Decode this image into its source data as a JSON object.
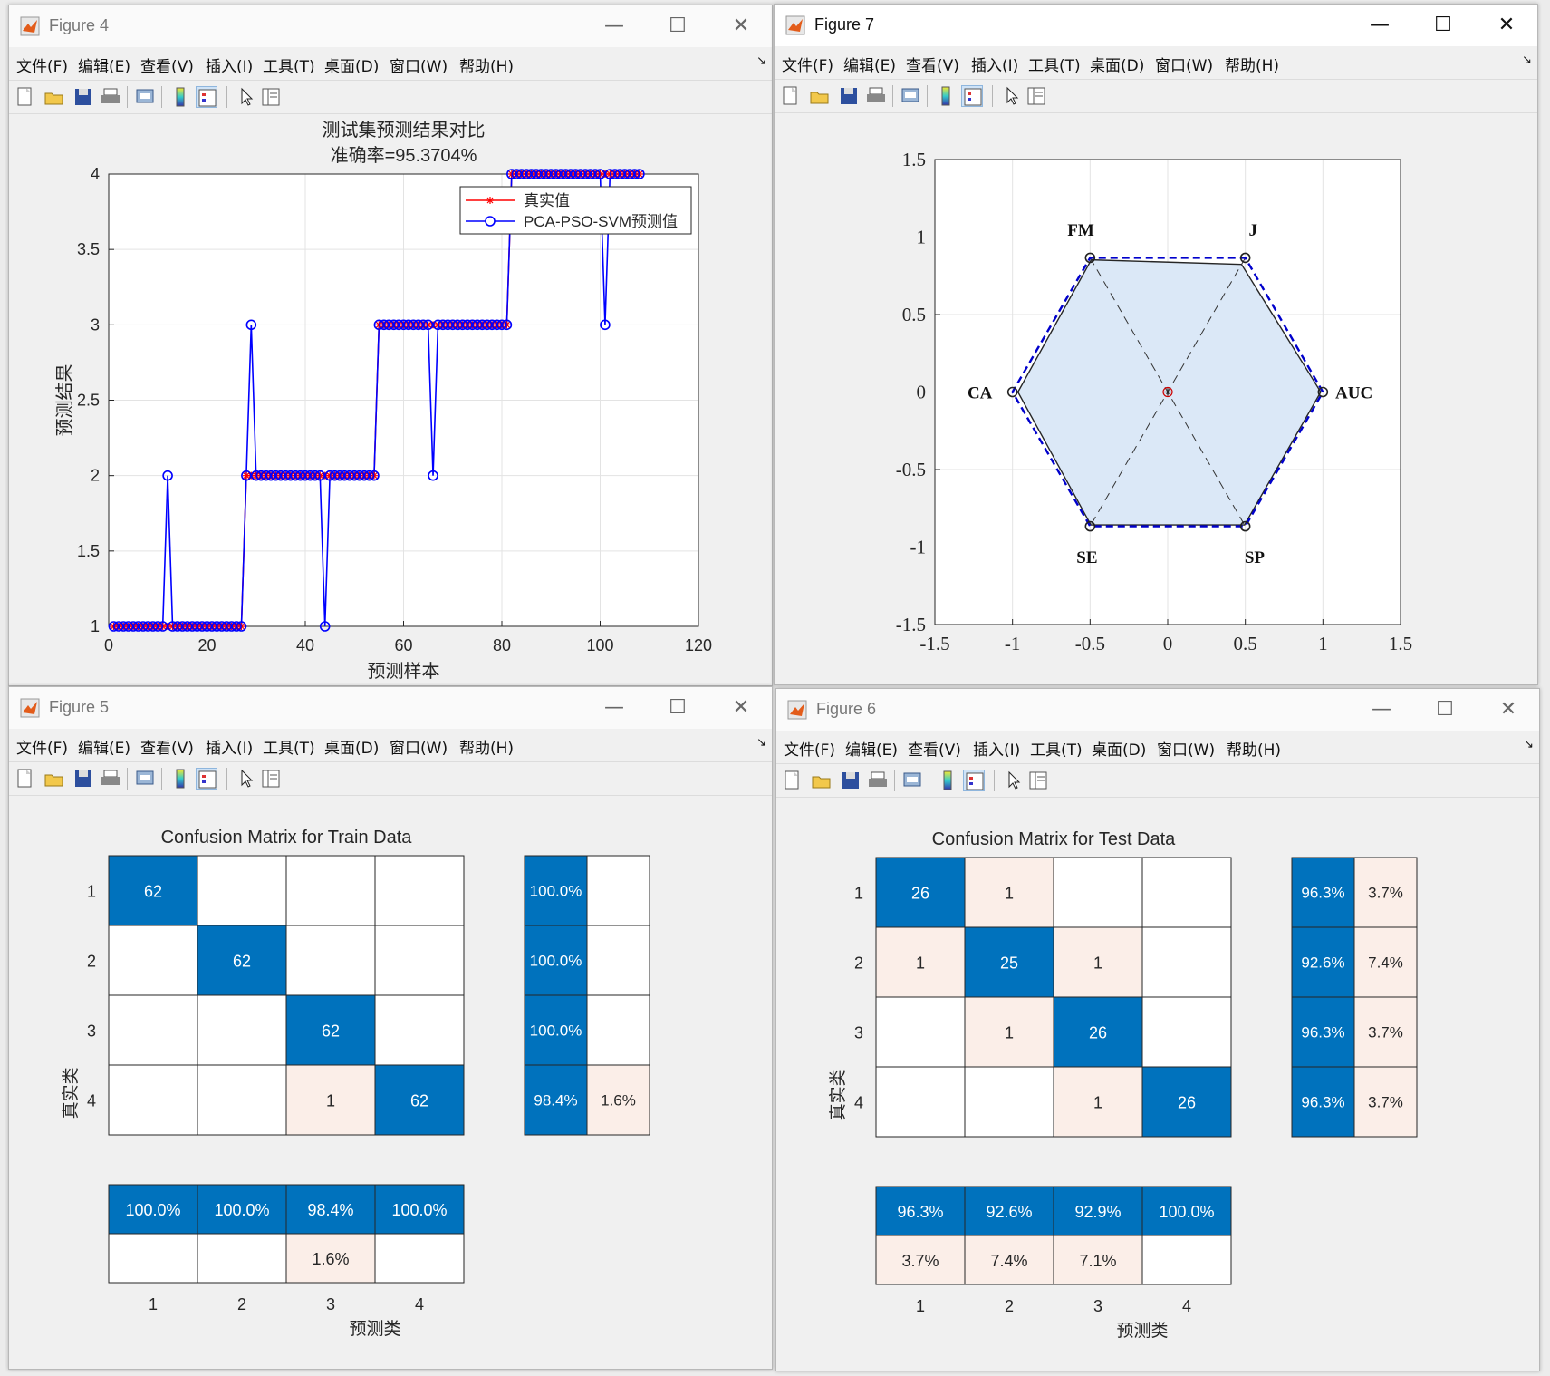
{
  "colors": {
    "blue": "#0072bd",
    "pink": "#fbeee8",
    "red": "#ff0000",
    "marker": "#0000ff",
    "hexfill": "#dbe8f7"
  },
  "menus": [
    "文件(F)",
    "编辑(E)",
    "查看(V)",
    "插入(I)",
    "工具(T)",
    "桌面(D)",
    "窗口(W)",
    "帮助(H)"
  ],
  "toolbar_icons": [
    "new-file-icon",
    "open-folder-icon",
    "save-icon",
    "print-icon",
    "print-preview-icon",
    "colorbar-icon",
    "legend-icon",
    "pointer-icon",
    "property-inspector-icon"
  ],
  "fig4": {
    "title": "Figure 4",
    "plot_title_1": "测试集预测结果对比",
    "plot_title_2": "准确率=95.3704%",
    "xlabel": "预测样本",
    "ylabel": "预测结果",
    "legend": [
      "真实值",
      "PCA-PSO-SVM预测值"
    ],
    "xticks": [
      "0",
      "20",
      "40",
      "60",
      "80",
      "100",
      "120"
    ],
    "yticks": [
      "1",
      "1.5",
      "2",
      "2.5",
      "3",
      "3.5",
      "4"
    ]
  },
  "fig7": {
    "title": "Figure 7",
    "labels": {
      "FM": "FM",
      "J": "J",
      "CA": "CA",
      "AUC": "AUC",
      "SE": "SE",
      "SP": "SP"
    },
    "xticks": [
      "-1.5",
      "-1",
      "-0.5",
      "0",
      "0.5",
      "1",
      "1.5"
    ],
    "yticks": [
      "1.5",
      "1",
      "0.5",
      "0",
      "-0.5",
      "-1",
      "-1.5"
    ]
  },
  "fig5": {
    "title": "Figure 5",
    "matrix_title": "Confusion Matrix for Train Data",
    "ylabel": "真实类",
    "xlabel": "预测类",
    "class_labels": [
      "1",
      "2",
      "3",
      "4"
    ]
  },
  "fig6": {
    "title": "Figure 6",
    "matrix_title": "Confusion Matrix for Test Data",
    "ylabel": "真实类",
    "xlabel": "预测类",
    "class_labels": [
      "1",
      "2",
      "3",
      "4"
    ]
  },
  "chart_data": [
    {
      "type": "line",
      "title": "测试集预测结果对比",
      "subtitle": "准确率=95.3704%",
      "xlabel": "预测样本",
      "ylabel": "预测结果",
      "xlim": [
        0,
        120
      ],
      "ylim": [
        1,
        4
      ],
      "grid": true,
      "legend_position": "top-right",
      "n_samples": 108,
      "series": [
        {
          "name": "真实值",
          "color": "#ff0000",
          "marker": "*",
          "segments": [
            {
              "from": 1,
              "to": 27,
              "y": 1
            },
            {
              "from": 28,
              "to": 54,
              "y": 2
            },
            {
              "from": 55,
              "to": 81,
              "y": 3
            },
            {
              "from": 82,
              "to": 108,
              "y": 4
            }
          ]
        },
        {
          "name": "PCA-PSO-SVM预测值",
          "color": "#0000ff",
          "marker": "o",
          "segments": [
            {
              "from": 1,
              "to": 27,
              "y": 1
            },
            {
              "from": 28,
              "to": 54,
              "y": 2
            },
            {
              "from": 55,
              "to": 81,
              "y": 3
            },
            {
              "from": 82,
              "to": 108,
              "y": 4
            }
          ],
          "deviations": [
            {
              "x": 12,
              "y": 2
            },
            {
              "x": 29,
              "y": 3
            },
            {
              "x": 44,
              "y": 1
            },
            {
              "x": 66,
              "y": 2
            },
            {
              "x": 101,
              "y": 3
            }
          ]
        }
      ]
    },
    {
      "type": "radar",
      "axes": [
        "AUC",
        "J",
        "FM",
        "CA",
        "SE",
        "SP"
      ],
      "xlim": [
        -1.5,
        1.5
      ],
      "ylim": [
        -1.5,
        1.5
      ],
      "series": [
        {
          "name": "",
          "style": "solid-filled",
          "values": [
            0.986,
            0.951,
            0.985,
            0.965,
            0.99,
            0.99
          ]
        },
        {
          "name": "",
          "style": "blue-dashed",
          "values": [
            1,
            1,
            1,
            1,
            1,
            1
          ]
        }
      ]
    },
    {
      "type": "heatmap",
      "title": "Confusion Matrix for Train Data",
      "classes": [
        "1",
        "2",
        "3",
        "4"
      ],
      "matrix": [
        [
          62,
          0,
          0,
          0
        ],
        [
          0,
          62,
          0,
          0
        ],
        [
          0,
          0,
          62,
          0
        ],
        [
          0,
          0,
          1,
          62
        ]
      ],
      "row_summary": [
        [
          "100.0%",
          ""
        ],
        [
          "100.0%",
          ""
        ],
        [
          "100.0%",
          ""
        ],
        [
          "98.4%",
          "1.6%"
        ]
      ],
      "col_summary": [
        [
          "100.0%",
          ""
        ],
        [
          "100.0%",
          ""
        ],
        [
          "98.4%",
          "1.6%"
        ],
        [
          "100.0%",
          ""
        ]
      ],
      "xlabel": "预测类",
      "ylabel": "真实类"
    },
    {
      "type": "heatmap",
      "title": "Confusion Matrix for Test Data",
      "classes": [
        "1",
        "2",
        "3",
        "4"
      ],
      "matrix": [
        [
          26,
          1,
          0,
          0
        ],
        [
          1,
          25,
          1,
          0
        ],
        [
          0,
          1,
          26,
          0
        ],
        [
          0,
          0,
          1,
          26
        ]
      ],
      "row_summary": [
        [
          "96.3%",
          "3.7%"
        ],
        [
          "92.6%",
          "7.4%"
        ],
        [
          "96.3%",
          "3.7%"
        ],
        [
          "96.3%",
          "3.7%"
        ]
      ],
      "col_summary": [
        [
          "96.3%",
          "3.7%"
        ],
        [
          "92.6%",
          "7.4%"
        ],
        [
          "92.9%",
          "7.1%"
        ],
        [
          "100.0%",
          ""
        ]
      ],
      "xlabel": "预测类",
      "ylabel": "真实类"
    }
  ]
}
